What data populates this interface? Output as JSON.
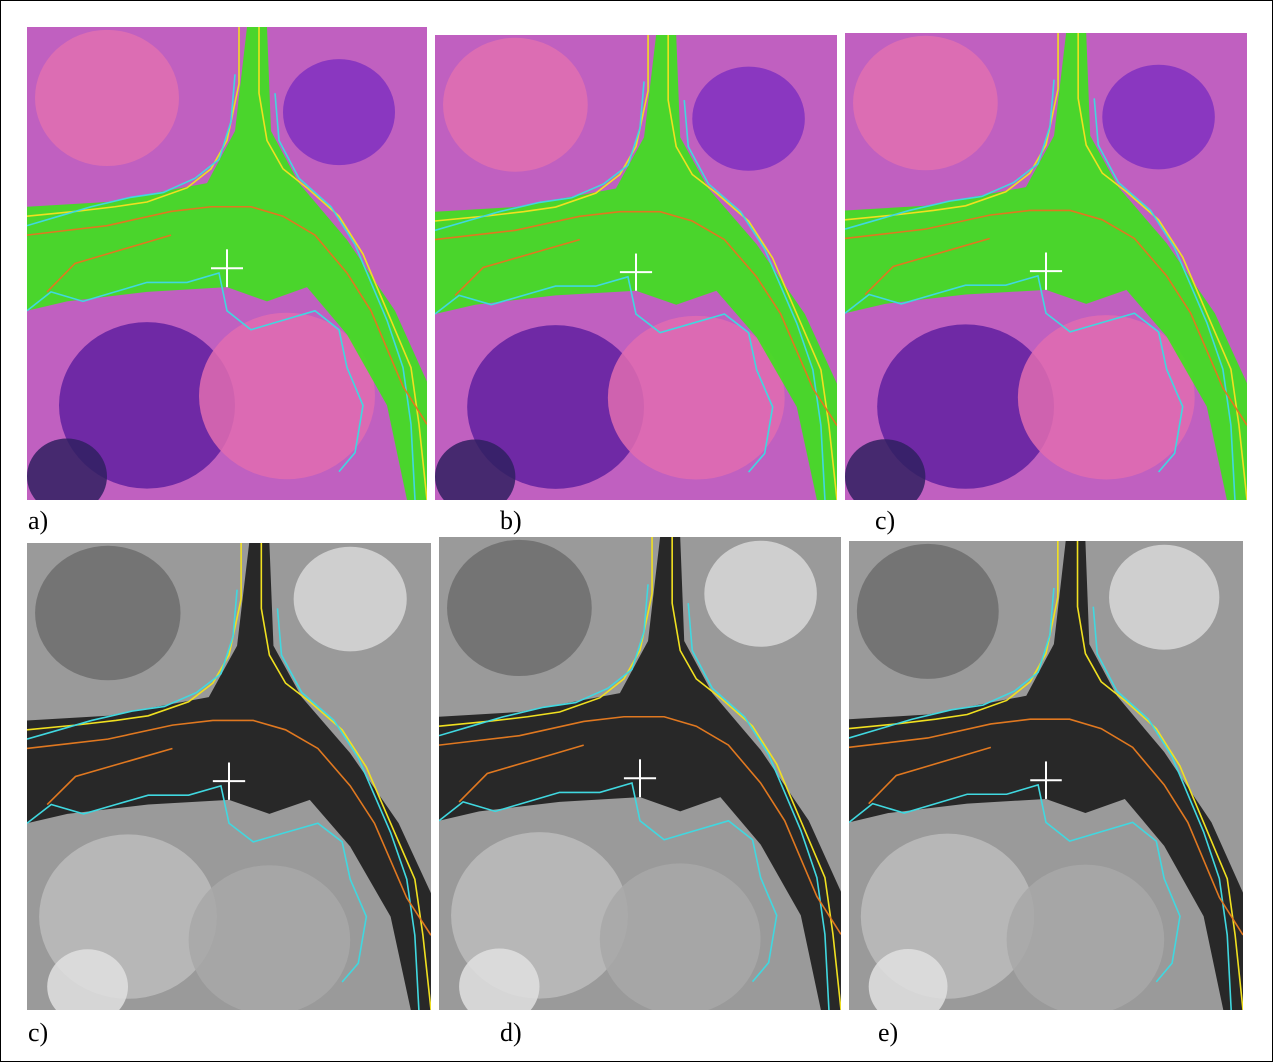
{
  "panels": [
    {
      "label": "a)"
    },
    {
      "label": "b)"
    },
    {
      "label": "c)"
    },
    {
      "label": "c)"
    },
    {
      "label": "d)"
    },
    {
      "label": "e)"
    }
  ]
}
